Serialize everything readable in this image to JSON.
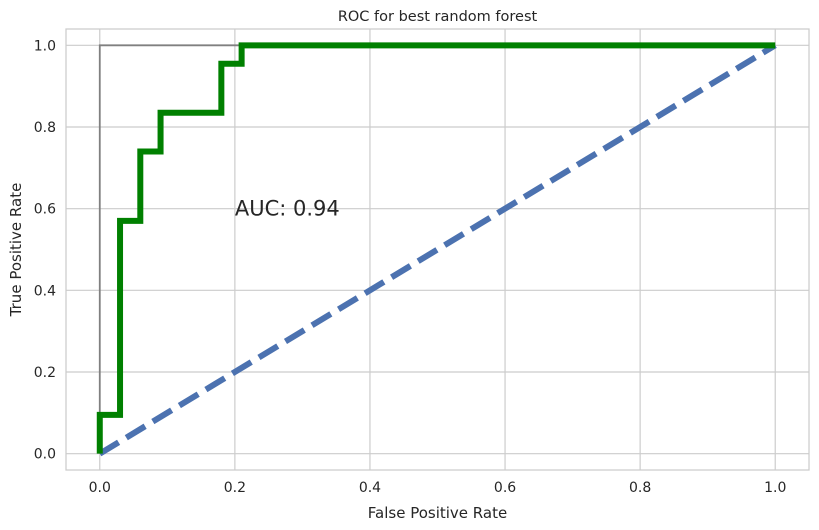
{
  "chart_data": {
    "type": "line",
    "title": "ROC for best random forest",
    "xlabel": "False Positive Rate",
    "ylabel": "True Positive Rate",
    "xlim": [
      -0.05,
      1.05
    ],
    "ylim": [
      -0.04,
      1.04
    ],
    "xticks": [
      0.0,
      0.2,
      0.4,
      0.6,
      0.8,
      1.0
    ],
    "xtick_labels": [
      "0.0",
      "0.2",
      "0.4",
      "0.6",
      "0.8",
      "1.0"
    ],
    "yticks": [
      0.0,
      0.2,
      0.4,
      0.6,
      0.8,
      1.0
    ],
    "ytick_labels": [
      "0.0",
      "0.2",
      "0.4",
      "0.6",
      "0.8",
      "1.0"
    ],
    "grid": true,
    "annotation": {
      "text": "AUC: 0.94",
      "x": 0.2,
      "y": 0.6
    },
    "series": [
      {
        "color": "#808080",
        "style": "solid",
        "x": [
          0.0,
          0.0,
          1.0
        ],
        "y": [
          0.0,
          1.0,
          1.0
        ]
      },
      {
        "color": "#4c72b0",
        "style": "dashed",
        "x": [
          0.0,
          1.0
        ],
        "y": [
          0.0,
          1.0
        ]
      },
      {
        "color": "#008000",
        "style": "solid",
        "x": [
          0.0,
          0.0,
          0.03,
          0.03,
          0.06,
          0.06,
          0.09,
          0.09,
          0.18,
          0.18,
          0.21,
          0.21,
          1.0
        ],
        "y": [
          0.0,
          0.095,
          0.095,
          0.57,
          0.57,
          0.74,
          0.74,
          0.835,
          0.835,
          0.955,
          0.955,
          1.0,
          1.0
        ]
      }
    ]
  }
}
